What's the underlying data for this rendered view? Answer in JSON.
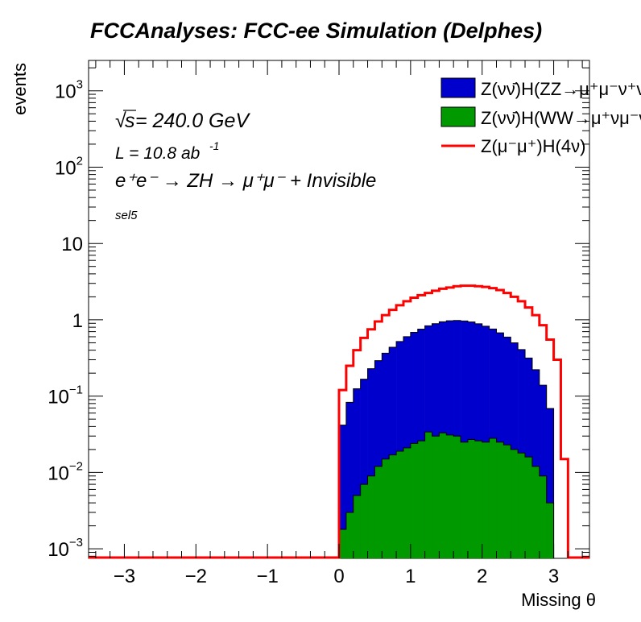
{
  "chart_data": {
    "type": "histogram",
    "title": "FCCAnalyses: FCC-ee Simulation (Delphes)",
    "xlabel": "Missing θ",
    "ylabel": "events",
    "xlim": [
      -3.5,
      3.5
    ],
    "ylim": [
      0.00075,
      2500
    ],
    "yscale": "log",
    "grid": false,
    "legend_position": "top-right",
    "annotations": {
      "energy_prefix": "√",
      "energy_s": "s",
      "energy_text": " = 240.0 GeV",
      "lumi_base": "L = 10.8 ab",
      "lumi_exp": "-1",
      "process_text": "e⁺e⁻ → ZH → μ⁺μ⁻ + Invisible",
      "selection": "sel5"
    },
    "x_ticks": [
      {
        "value": -3,
        "label": "−3"
      },
      {
        "value": -2,
        "label": "−2"
      },
      {
        "value": -1,
        "label": "−1"
      },
      {
        "value": 0,
        "label": "0"
      },
      {
        "value": 1,
        "label": "1"
      },
      {
        "value": 2,
        "label": "2"
      },
      {
        "value": 3,
        "label": "3"
      }
    ],
    "y_ticks": [
      {
        "value": 0.001,
        "base": "10",
        "exp": "−3"
      },
      {
        "value": 0.01,
        "base": "10",
        "exp": "−2"
      },
      {
        "value": 0.1,
        "base": "10",
        "exp": "−1"
      },
      {
        "value": 1,
        "base": "1",
        "exp": ""
      },
      {
        "value": 10,
        "base": "10",
        "exp": ""
      },
      {
        "value": 100,
        "base": "10",
        "exp": "2"
      },
      {
        "value": 1000,
        "base": "10",
        "exp": "3"
      }
    ],
    "bin_edges": [
      0.0,
      0.1,
      0.2,
      0.3,
      0.4,
      0.5,
      0.6,
      0.7,
      0.8,
      0.9,
      1.0,
      1.1,
      1.2,
      1.3,
      1.4,
      1.5,
      1.6,
      1.7,
      1.8,
      1.9,
      2.0,
      2.1,
      2.2,
      2.3,
      2.4,
      2.5,
      2.6,
      2.7,
      2.8,
      2.9,
      3.0,
      3.1,
      3.2
    ],
    "series": [
      {
        "name": "Z(νν̄)H(ZZ→μ⁺μ⁻ν⁺ν⁻)",
        "kind": "stacked-fill",
        "color": "#0000cc",
        "values": [
          0.04,
          0.08,
          0.12,
          0.16,
          0.22,
          0.28,
          0.35,
          0.42,
          0.5,
          0.58,
          0.66,
          0.73,
          0.8,
          0.86,
          0.91,
          0.94,
          0.95,
          0.94,
          0.91,
          0.86,
          0.8,
          0.73,
          0.65,
          0.57,
          0.48,
          0.39,
          0.3,
          0.21,
          0.13,
          0.065,
          0.0,
          0.0
        ]
      },
      {
        "name": "Z(νν̄)H(WW→μ⁺νμ⁻ν̄)",
        "kind": "stacked-fill",
        "color": "#009900",
        "values": [
          0.0018,
          0.003,
          0.005,
          0.007,
          0.009,
          0.012,
          0.015,
          0.017,
          0.019,
          0.021,
          0.024,
          0.026,
          0.034,
          0.03,
          0.033,
          0.031,
          0.03,
          0.025,
          0.027,
          0.026,
          0.025,
          0.028,
          0.025,
          0.023,
          0.02,
          0.018,
          0.016,
          0.012,
          0.009,
          0.004,
          0.0,
          0.0
        ]
      },
      {
        "name": "Z(μ⁻μ⁺)H(4ν)",
        "kind": "line",
        "color": "#ff0000",
        "values": [
          0.12,
          0.25,
          0.4,
          0.58,
          0.75,
          0.95,
          1.15,
          1.35,
          1.55,
          1.75,
          1.95,
          2.1,
          2.25,
          2.4,
          2.55,
          2.65,
          2.75,
          2.8,
          2.8,
          2.75,
          2.7,
          2.6,
          2.45,
          2.25,
          2.0,
          1.75,
          1.45,
          1.15,
          0.85,
          0.55,
          0.3,
          0.015
        ]
      }
    ]
  }
}
